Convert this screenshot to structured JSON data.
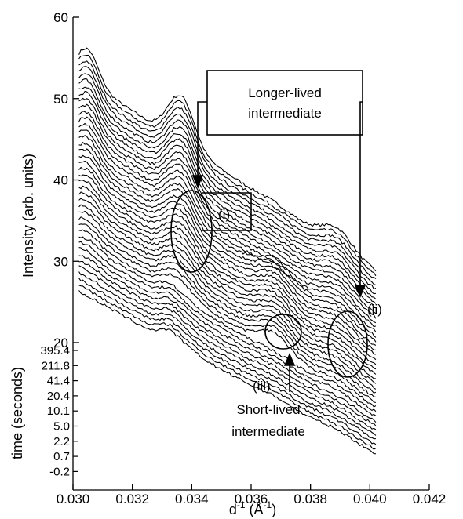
{
  "chart_data": {
    "type": "line",
    "xlabel_main": "d",
    "xlabel_sup": "-1",
    "xlabel_unit": " (Å",
    "xlabel_unit_sup": "-1",
    "xlabel_close": ")",
    "ylabel": "Intensity (arb. units)",
    "time_label": "time (seconds)",
    "xlim": [
      0.03,
      0.042
    ],
    "ylim": [
      20,
      60
    ],
    "x_ticks": [
      "0.030",
      "0.032",
      "0.034",
      "0.036",
      "0.038",
      "0.040",
      "0.042"
    ],
    "y_ticks": [
      "20",
      "30",
      "40",
      "50",
      "60"
    ],
    "time_ticks": [
      "395.4",
      "211.8",
      "41.4",
      "20.4",
      "10.1",
      "5.0",
      "2.2",
      "0.7",
      "-0.2"
    ],
    "trace_count": 40,
    "trace_x_range": [
      0.0302,
      0.0402
    ],
    "annotations": {
      "longer_lived": [
        "Longer-lived",
        "intermediate"
      ],
      "short_lived": [
        "Short-lived",
        "intermediate"
      ],
      "label_i": "(i)",
      "label_ii": "(ii)",
      "label_iii": "(iii)"
    }
  }
}
